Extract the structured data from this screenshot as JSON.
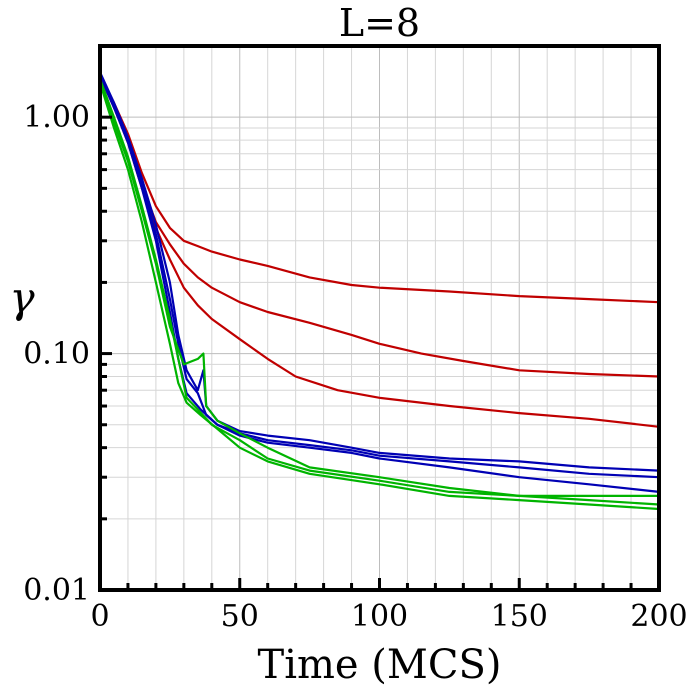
{
  "chart_data": {
    "type": "line",
    "title": "L=8",
    "xlabel": "Time (MCS)",
    "ylabel": "γ",
    "xlim": [
      0,
      200
    ],
    "ylim": [
      0.01,
      2.0
    ],
    "yscale": "log",
    "grid": true,
    "x_ticks": [
      0,
      50,
      100,
      150,
      200
    ],
    "x_tick_labels": [
      "0",
      "50",
      "100",
      "150",
      "200"
    ],
    "y_ticks": [
      0.01,
      0.1,
      1.0
    ],
    "y_tick_labels": [
      "0.01",
      "0.10",
      "1.00"
    ],
    "colors": {
      "red": "#c00000",
      "blue": "#0000b4",
      "green": "#00b400"
    },
    "series": [
      {
        "color": "red",
        "points": [
          [
            0,
            1.5
          ],
          [
            5,
            1.15
          ],
          [
            10,
            0.85
          ],
          [
            15,
            0.58
          ],
          [
            20,
            0.42
          ],
          [
            25,
            0.34
          ],
          [
            30,
            0.3
          ],
          [
            35,
            0.285
          ],
          [
            40,
            0.27
          ],
          [
            50,
            0.25
          ],
          [
            60,
            0.235
          ],
          [
            75,
            0.21
          ],
          [
            90,
            0.195
          ],
          [
            100,
            0.19
          ],
          [
            125,
            0.183
          ],
          [
            150,
            0.175
          ],
          [
            175,
            0.17
          ],
          [
            200,
            0.165
          ]
        ]
      },
      {
        "color": "red",
        "points": [
          [
            0,
            1.5
          ],
          [
            5,
            1.1
          ],
          [
            10,
            0.8
          ],
          [
            15,
            0.52
          ],
          [
            20,
            0.36
          ],
          [
            25,
            0.29
          ],
          [
            30,
            0.24
          ],
          [
            35,
            0.21
          ],
          [
            40,
            0.19
          ],
          [
            50,
            0.165
          ],
          [
            60,
            0.15
          ],
          [
            75,
            0.135
          ],
          [
            90,
            0.12
          ],
          [
            100,
            0.11
          ],
          [
            115,
            0.1
          ],
          [
            130,
            0.093
          ],
          [
            150,
            0.085
          ],
          [
            175,
            0.082
          ],
          [
            200,
            0.08
          ]
        ]
      },
      {
        "color": "red",
        "points": [
          [
            0,
            1.5
          ],
          [
            5,
            1.1
          ],
          [
            10,
            0.78
          ],
          [
            15,
            0.5
          ],
          [
            20,
            0.34
          ],
          [
            25,
            0.25
          ],
          [
            30,
            0.19
          ],
          [
            35,
            0.16
          ],
          [
            40,
            0.14
          ],
          [
            50,
            0.115
          ],
          [
            60,
            0.095
          ],
          [
            70,
            0.08
          ],
          [
            85,
            0.07
          ],
          [
            100,
            0.065
          ],
          [
            125,
            0.06
          ],
          [
            150,
            0.056
          ],
          [
            175,
            0.053
          ],
          [
            200,
            0.049
          ]
        ]
      },
      {
        "color": "blue",
        "points": [
          [
            0,
            1.55
          ],
          [
            5,
            1.15
          ],
          [
            10,
            0.82
          ],
          [
            15,
            0.55
          ],
          [
            20,
            0.35
          ],
          [
            25,
            0.2
          ],
          [
            28,
            0.12
          ],
          [
            31,
            0.085
          ],
          [
            35,
            0.07
          ],
          [
            37,
            0.085
          ],
          [
            38,
            0.06
          ],
          [
            42,
            0.052
          ],
          [
            50,
            0.047
          ],
          [
            60,
            0.045
          ],
          [
            75,
            0.043
          ],
          [
            90,
            0.04
          ],
          [
            100,
            0.038
          ],
          [
            125,
            0.036
          ],
          [
            150,
            0.035
          ],
          [
            175,
            0.033
          ],
          [
            200,
            0.032
          ]
        ]
      },
      {
        "color": "blue",
        "points": [
          [
            0,
            1.5
          ],
          [
            5,
            1.1
          ],
          [
            10,
            0.8
          ],
          [
            15,
            0.52
          ],
          [
            20,
            0.32
          ],
          [
            25,
            0.17
          ],
          [
            28,
            0.11
          ],
          [
            31,
            0.078
          ],
          [
            35,
            0.068
          ],
          [
            38,
            0.055
          ],
          [
            42,
            0.05
          ],
          [
            50,
            0.046
          ],
          [
            60,
            0.043
          ],
          [
            75,
            0.041
          ],
          [
            90,
            0.039
          ],
          [
            100,
            0.037
          ],
          [
            125,
            0.035
          ],
          [
            150,
            0.033
          ],
          [
            175,
            0.031
          ],
          [
            200,
            0.03
          ]
        ]
      },
      {
        "color": "blue",
        "points": [
          [
            0,
            1.5
          ],
          [
            5,
            1.1
          ],
          [
            10,
            0.78
          ],
          [
            15,
            0.5
          ],
          [
            20,
            0.3
          ],
          [
            25,
            0.15
          ],
          [
            28,
            0.095
          ],
          [
            31,
            0.068
          ],
          [
            36,
            0.058
          ],
          [
            42,
            0.05
          ],
          [
            50,
            0.045
          ],
          [
            60,
            0.042
          ],
          [
            75,
            0.04
          ],
          [
            90,
            0.038
          ],
          [
            100,
            0.036
          ],
          [
            125,
            0.033
          ],
          [
            150,
            0.03
          ],
          [
            175,
            0.028
          ],
          [
            200,
            0.026
          ]
        ]
      },
      {
        "color": "green",
        "points": [
          [
            0,
            1.45
          ],
          [
            5,
            1.0
          ],
          [
            10,
            0.68
          ],
          [
            15,
            0.42
          ],
          [
            20,
            0.25
          ],
          [
            25,
            0.14
          ],
          [
            28,
            0.095
          ],
          [
            31,
            0.065
          ],
          [
            35,
            0.058
          ],
          [
            40,
            0.05
          ],
          [
            50,
            0.043
          ],
          [
            60,
            0.036
          ],
          [
            75,
            0.032
          ],
          [
            100,
            0.029
          ],
          [
            125,
            0.026
          ],
          [
            150,
            0.025
          ],
          [
            175,
            0.024
          ],
          [
            200,
            0.023
          ]
        ]
      },
      {
        "color": "green",
        "points": [
          [
            0,
            1.4
          ],
          [
            5,
            0.95
          ],
          [
            10,
            0.65
          ],
          [
            15,
            0.4
          ],
          [
            20,
            0.24
          ],
          [
            25,
            0.13
          ],
          [
            30,
            0.09
          ],
          [
            35,
            0.095
          ],
          [
            37,
            0.1
          ],
          [
            38,
            0.06
          ],
          [
            42,
            0.052
          ],
          [
            50,
            0.046
          ],
          [
            60,
            0.04
          ],
          [
            75,
            0.033
          ],
          [
            100,
            0.03
          ],
          [
            125,
            0.027
          ],
          [
            150,
            0.025
          ],
          [
            175,
            0.025
          ],
          [
            200,
            0.025
          ]
        ]
      },
      {
        "color": "green",
        "points": [
          [
            0,
            1.4
          ],
          [
            5,
            0.9
          ],
          [
            10,
            0.6
          ],
          [
            15,
            0.36
          ],
          [
            20,
            0.2
          ],
          [
            25,
            0.11
          ],
          [
            28,
            0.075
          ],
          [
            31,
            0.062
          ],
          [
            36,
            0.055
          ],
          [
            42,
            0.048
          ],
          [
            50,
            0.04
          ],
          [
            60,
            0.035
          ],
          [
            75,
            0.031
          ],
          [
            100,
            0.028
          ],
          [
            125,
            0.025
          ],
          [
            150,
            0.024
          ],
          [
            175,
            0.023
          ],
          [
            200,
            0.022
          ]
        ]
      }
    ]
  }
}
